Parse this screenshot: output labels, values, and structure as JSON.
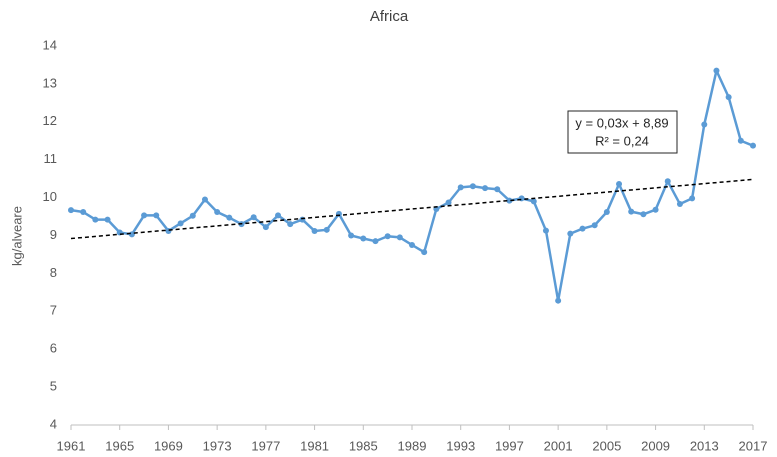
{
  "chart_data": {
    "type": "line",
    "title": "Africa",
    "y_label": "kg/alveare",
    "x": [
      1961,
      1962,
      1963,
      1964,
      1965,
      1966,
      1967,
      1968,
      1969,
      1970,
      1971,
      1972,
      1973,
      1974,
      1975,
      1976,
      1977,
      1978,
      1979,
      1980,
      1981,
      1982,
      1983,
      1984,
      1985,
      1986,
      1987,
      1988,
      1989,
      1990,
      1991,
      1992,
      1993,
      1994,
      1995,
      1996,
      1997,
      1998,
      1999,
      2000,
      2001,
      2002,
      2003,
      2004,
      2005,
      2006,
      2007,
      2008,
      2009,
      2010,
      2011,
      2012,
      2013,
      2014,
      2015,
      2016,
      2017
    ],
    "values": [
      9.67,
      9.62,
      9.42,
      9.42,
      9.08,
      9.03,
      9.53,
      9.53,
      9.12,
      9.32,
      9.52,
      9.95,
      9.62,
      9.47,
      9.3,
      9.48,
      9.22,
      9.53,
      9.3,
      9.42,
      9.12,
      9.15,
      9.57,
      9.0,
      8.92,
      8.85,
      8.98,
      8.95,
      8.75,
      8.56,
      9.7,
      9.87,
      10.27,
      10.3,
      10.25,
      10.22,
      9.92,
      9.98,
      9.9,
      9.13,
      7.28,
      9.05,
      9.18,
      9.27,
      9.62,
      10.36,
      9.63,
      9.56,
      9.68,
      10.43,
      9.83,
      9.98,
      11.93,
      13.35,
      12.65,
      11.5,
      11.37
    ],
    "color": "#5b9bd5",
    "trendline": {
      "x": [
        1961,
        2017
      ],
      "values": [
        8.92,
        10.48
      ],
      "color": "#000000"
    },
    "annotation": [
      "y = 0,03x + 8,89",
      "R² = 0,24"
    ],
    "xlim": [
      1961,
      2017
    ],
    "xticks": [
      1961,
      1965,
      1969,
      1973,
      1977,
      1981,
      1985,
      1989,
      1993,
      1997,
      2001,
      2005,
      2009,
      2013,
      2017
    ],
    "ylim": [
      4,
      14
    ],
    "yticks": [
      4,
      5,
      6,
      7,
      8,
      9,
      10,
      11,
      12,
      13,
      14
    ],
    "grid": false
  }
}
